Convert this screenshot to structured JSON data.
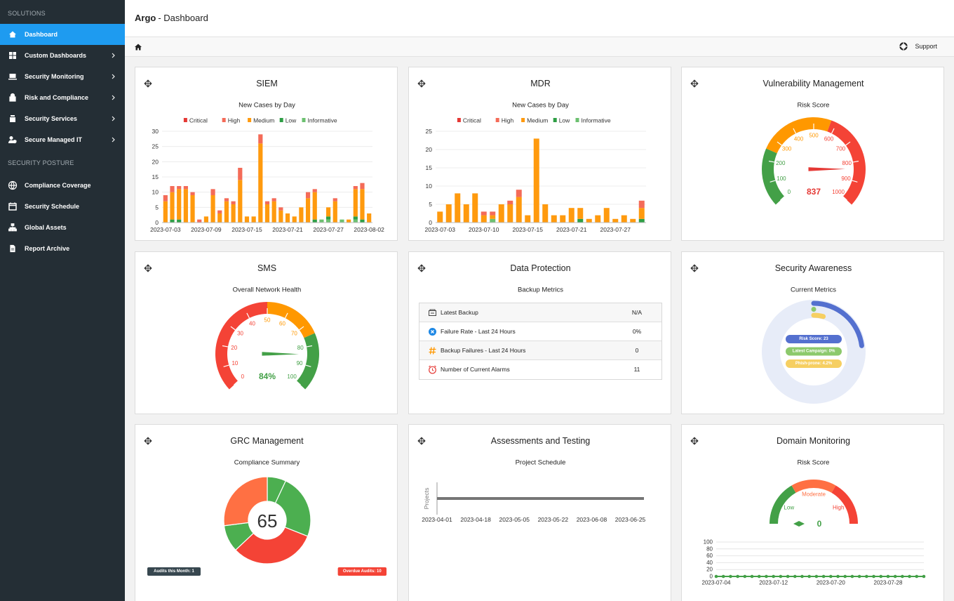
{
  "sidebar": {
    "sections": [
      {
        "title": "SOLUTIONS",
        "items": [
          {
            "label": "Dashboard",
            "active": true
          },
          {
            "label": "Custom Dashboards",
            "submenu": true
          },
          {
            "label": "Security Monitoring",
            "submenu": true
          },
          {
            "label": "Risk and Compliance",
            "submenu": true
          },
          {
            "label": "Security Services",
            "submenu": true
          },
          {
            "label": "Secure Managed IT",
            "submenu": true
          }
        ]
      },
      {
        "title": "SECURITY POSTURE",
        "items": [
          {
            "label": "Compliance Coverage"
          },
          {
            "label": "Security Schedule"
          },
          {
            "label": "Global Assets"
          },
          {
            "label": "Report Archive"
          }
        ]
      }
    ]
  },
  "header": {
    "brand": "Argo",
    "page": "- Dashboard"
  },
  "toolbar": {
    "support": "Support"
  },
  "widgets": [
    {
      "title": "SIEM"
    },
    {
      "title": "MDR"
    },
    {
      "title": "Vulnerability Management"
    },
    {
      "title": "SMS"
    },
    {
      "title": "Data Protection"
    },
    {
      "title": "Security Awareness"
    },
    {
      "title": "GRC Management"
    },
    {
      "title": "Assessments and Testing"
    },
    {
      "title": "Domain Monitoring"
    }
  ],
  "data_protection": {
    "subtitle": "Backup Metrics",
    "rows": [
      [
        "Latest Backup",
        "N/A"
      ],
      [
        "Failure Rate - Last 24 Hours",
        "0%"
      ],
      [
        "Backup Failures - Last 24 Hours",
        "0"
      ],
      [
        "Number of Current Alarms",
        "11"
      ]
    ]
  },
  "grc_badges": [
    "Audits this Month: 1",
    "Overdue Audits: 10"
  ],
  "chart_data": [
    {
      "type": "stacked_bar",
      "title": "New Cases by Day",
      "categories": [
        "2023-07-03",
        null,
        null,
        null,
        null,
        null,
        "2023-07-09",
        null,
        null,
        null,
        null,
        null,
        "2023-07-15",
        null,
        null,
        null,
        null,
        null,
        "2023-07-21",
        null,
        null,
        null,
        null,
        null,
        "2023-07-27",
        null,
        null,
        null,
        null,
        null,
        "2023-08-02"
      ],
      "series": [
        {
          "name": "Critical",
          "color": "#e53935",
          "values": [
            0,
            0,
            0,
            0,
            0,
            0,
            0,
            0,
            0,
            0,
            0,
            0,
            0,
            0,
            0,
            0,
            0,
            0,
            0,
            0,
            0,
            0,
            0,
            0,
            0,
            0,
            0,
            0,
            0,
            0,
            0
          ]
        },
        {
          "name": "High",
          "color": "#f46b58",
          "values": [
            2,
            2,
            1,
            1,
            1,
            1,
            0,
            2,
            1,
            1,
            1,
            4,
            0,
            0,
            3,
            1,
            1,
            1,
            0,
            0,
            0,
            2,
            1,
            0,
            0,
            1,
            0,
            0,
            1,
            2,
            0
          ]
        },
        {
          "name": "Medium",
          "color": "#ff9a0e",
          "values": [
            7,
            9,
            10,
            11,
            9,
            0,
            2,
            9,
            3,
            7,
            6,
            14,
            2,
            2,
            26,
            6,
            7,
            4,
            3,
            2,
            5,
            8,
            9,
            0,
            3,
            7,
            0,
            1,
            9,
            10,
            3
          ]
        },
        {
          "name": "Low",
          "color": "#2e9e45",
          "values": [
            0,
            1,
            1,
            0,
            0,
            0,
            0,
            0,
            0,
            0,
            0,
            0,
            0,
            0,
            0,
            0,
            0,
            0,
            0,
            0,
            0,
            0,
            1,
            0,
            1,
            0,
            0,
            0,
            1,
            1,
            0
          ]
        },
        {
          "name": "Informative",
          "color": "#6cc070",
          "values": [
            0,
            0,
            0,
            0,
            0,
            0,
            0,
            0,
            0,
            0,
            0,
            0,
            0,
            0,
            0,
            0,
            0,
            0,
            0,
            0,
            0,
            0,
            0,
            1,
            1,
            0,
            1,
            0,
            1,
            0,
            0
          ]
        }
      ],
      "ylim": [
        0,
        30
      ],
      "yticks": [
        0,
        5,
        10,
        15,
        20,
        25,
        30
      ],
      "grid": true,
      "legend": "top"
    },
    {
      "type": "stacked_bar",
      "title": "New Cases by Day",
      "categories": [
        "2023-07-03",
        null,
        null,
        null,
        null,
        "2023-07-10",
        null,
        null,
        null,
        null,
        "2023-07-15",
        null,
        null,
        null,
        null,
        "2023-07-21",
        null,
        null,
        null,
        null,
        "2023-07-27",
        null,
        null,
        null
      ],
      "series": [
        {
          "name": "Critical",
          "color": "#e53935",
          "values": [
            0,
            0,
            0,
            0,
            0,
            0,
            0,
            0,
            0,
            0,
            0,
            0,
            0,
            0,
            0,
            0,
            0,
            0,
            0,
            0,
            0,
            0,
            0,
            0
          ]
        },
        {
          "name": "High",
          "color": "#f46b58",
          "values": [
            0,
            0,
            0,
            0,
            0,
            1,
            1,
            0,
            1,
            2,
            0,
            0,
            0,
            0,
            0,
            0,
            0,
            0,
            0,
            0,
            0,
            0,
            0,
            2
          ]
        },
        {
          "name": "Medium",
          "color": "#ff9a0e",
          "values": [
            3,
            5,
            8,
            5,
            8,
            2,
            1,
            5,
            5,
            7,
            2,
            23,
            5,
            2,
            2,
            4,
            3,
            1,
            2,
            4,
            1,
            2,
            1,
            3
          ]
        },
        {
          "name": "Low",
          "color": "#2e9e45",
          "values": [
            0,
            0,
            0,
            0,
            0,
            0,
            0,
            0,
            0,
            0,
            0,
            0,
            0,
            0,
            0,
            0,
            1,
            0,
            0,
            0,
            0,
            0,
            0,
            1
          ]
        },
        {
          "name": "Informative",
          "color": "#6cc070",
          "values": [
            0,
            0,
            0,
            0,
            0,
            0,
            1,
            0,
            0,
            0,
            0,
            0,
            0,
            0,
            0,
            0,
            0,
            0,
            0,
            0,
            0,
            0,
            0,
            0
          ]
        }
      ],
      "ylim": [
        0,
        25
      ],
      "yticks": [
        0,
        5,
        10,
        15,
        20,
        25
      ],
      "grid": true,
      "legend": "top"
    },
    {
      "type": "gauge",
      "title": "Risk Score",
      "value": 837,
      "color": "#e53935",
      "ylim": [
        0,
        1000
      ],
      "yticks": [
        0,
        100,
        200,
        300,
        400,
        500,
        600,
        700,
        800,
        900,
        1000
      ],
      "bands": [
        {
          "from": 0,
          "to": 250,
          "color": "#43a047"
        },
        {
          "from": 250,
          "to": 575,
          "color": "#ff9800"
        },
        {
          "from": 575,
          "to": 1000,
          "color": "#f44336"
        }
      ]
    },
    {
      "type": "gauge",
      "title": "Overall Network Health",
      "value": 84,
      "value_label": "84%",
      "color": "#43a047",
      "ylim": [
        0,
        100
      ],
      "yticks": [
        0,
        10,
        20,
        30,
        40,
        50,
        60,
        70,
        80,
        90,
        100
      ],
      "bands": [
        {
          "from": 0,
          "to": 50,
          "color": "#f44336"
        },
        {
          "from": 50,
          "to": 75,
          "color": "#ff9800"
        },
        {
          "from": 75,
          "to": 100,
          "color": "#43a047"
        }
      ]
    },
    {
      "type": "radial_bar",
      "title": "Current Metrics",
      "ylim": [
        0,
        100
      ],
      "series": [
        {
          "name": "Risk Score: 23",
          "color": "#5470cf",
          "value": 23
        },
        {
          "name": "Latest Campaign: 0%",
          "color": "#8cc96c",
          "value": 0
        },
        {
          "name": "Phish-prone: 4.2%",
          "color": "#f6cf62",
          "value": 4.2
        }
      ]
    },
    {
      "type": "donut",
      "title": "Compliance Summary",
      "center_label": "65",
      "values": [
        7,
        24,
        32,
        10,
        27
      ],
      "colors": [
        "#4caf50",
        "#4caf50",
        "#f44336",
        "#4caf50",
        "#ff7043"
      ]
    },
    {
      "type": "timeline",
      "title": "Project Schedule",
      "y_label": "Projects",
      "xlim": [
        "2023-04-01",
        "2023-07-01"
      ],
      "xticks": [
        "2023-04-01",
        "2023-04-18",
        "2023-05-05",
        "2023-05-22",
        "2023-06-08",
        "2023-06-25"
      ],
      "bars": [
        {
          "start": "2023-04-01",
          "end": "2023-07-01",
          "color": "#757575"
        }
      ]
    },
    {
      "type": "category_gauge",
      "title": "Risk Score",
      "value": 0,
      "color": "#43a047",
      "bands": [
        {
          "name": "Low",
          "color": "#43a047"
        },
        {
          "name": "Moderate",
          "color": "#ff7043"
        },
        {
          "name": "High",
          "color": "#f44336"
        }
      ]
    },
    {
      "type": "line",
      "categories": [
        "2023-07-04",
        null,
        null,
        null,
        null,
        null,
        null,
        null,
        "2023-07-12",
        null,
        null,
        null,
        null,
        null,
        null,
        null,
        "2023-07-20",
        null,
        null,
        null,
        null,
        null,
        null,
        null,
        "2023-07-28",
        null,
        null,
        null,
        null,
        null
      ],
      "series": [
        {
          "color": "#43a047",
          "values": [
            0,
            0,
            0,
            0,
            0,
            0,
            0,
            0,
            0,
            0,
            0,
            0,
            0,
            0,
            0,
            0,
            0,
            0,
            0,
            0,
            0,
            0,
            0,
            0,
            0,
            0,
            0,
            0,
            0,
            0
          ]
        }
      ],
      "ylim": [
        0,
        100
      ],
      "yticks": [
        0,
        20,
        40,
        60,
        80,
        100
      ],
      "grid": true
    }
  ]
}
